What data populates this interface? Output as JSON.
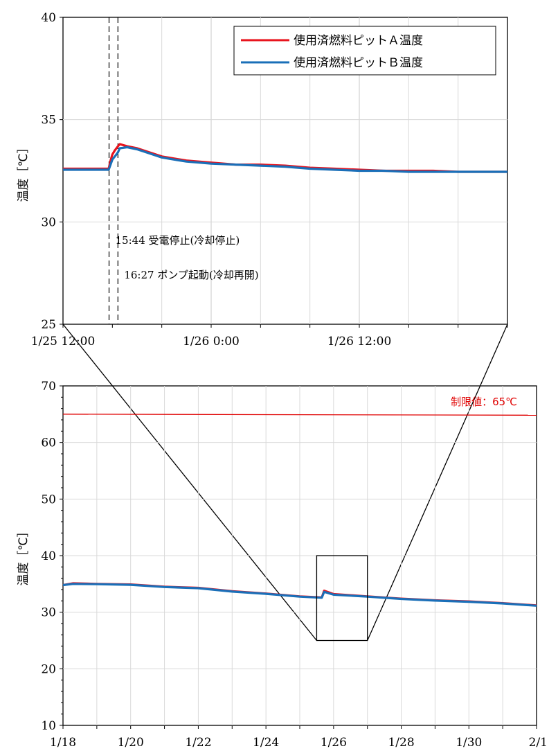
{
  "chart_data": [
    {
      "id": "top",
      "type": "line",
      "title": "",
      "xlabel": "",
      "ylabel": "温度［℃］",
      "xlim_hours": [
        12,
        48
      ],
      "x_ticks": [
        {
          "h": 12,
          "label": "1/25  12:00"
        },
        {
          "h": 24,
          "label": "1/26  0:00"
        },
        {
          "h": 36,
          "label": "1/26  12:00"
        }
      ],
      "ylim": [
        25,
        40
      ],
      "y_ticks": [
        25,
        30,
        35,
        40
      ],
      "legend_position": "top-right",
      "series": [
        {
          "name": "使用済燃料ピットＡ温度",
          "color": "#e8141e",
          "points": [
            [
              12,
              32.6
            ],
            [
              15.7,
              32.6
            ],
            [
              15.85,
              33.0
            ],
            [
              16.0,
              33.3
            ],
            [
              16.2,
              33.5
            ],
            [
              16.45,
              33.7
            ],
            [
              16.6,
              33.8
            ],
            [
              17.2,
              33.7
            ],
            [
              18,
              33.6
            ],
            [
              19,
              33.4
            ],
            [
              20,
              33.2
            ],
            [
              21,
              33.1
            ],
            [
              22,
              33.0
            ],
            [
              24,
              32.9
            ],
            [
              26,
              32.8
            ],
            [
              28,
              32.8
            ],
            [
              30,
              32.75
            ],
            [
              32,
              32.65
            ],
            [
              34,
              32.6
            ],
            [
              36,
              32.55
            ],
            [
              38,
              32.5
            ],
            [
              40,
              32.5
            ],
            [
              42,
              32.5
            ],
            [
              44,
              32.45
            ],
            [
              46,
              32.45
            ],
            [
              48,
              32.45
            ]
          ]
        },
        {
          "name": "使用済燃料ピットＢ温度",
          "color": "#1a6fb8",
          "points": [
            [
              12,
              32.55
            ],
            [
              15.7,
              32.55
            ],
            [
              15.85,
              32.8
            ],
            [
              16.0,
              33.05
            ],
            [
              16.2,
              33.2
            ],
            [
              16.45,
              33.4
            ],
            [
              16.6,
              33.6
            ],
            [
              17.2,
              33.65
            ],
            [
              18,
              33.55
            ],
            [
              19,
              33.35
            ],
            [
              20,
              33.15
            ],
            [
              21,
              33.05
            ],
            [
              22,
              32.95
            ],
            [
              24,
              32.85
            ],
            [
              26,
              32.8
            ],
            [
              28,
              32.75
            ],
            [
              30,
              32.7
            ],
            [
              32,
              32.6
            ],
            [
              34,
              32.55
            ],
            [
              36,
              32.5
            ],
            [
              38,
              32.5
            ],
            [
              40,
              32.45
            ],
            [
              42,
              32.45
            ],
            [
              44,
              32.45
            ],
            [
              46,
              32.45
            ],
            [
              48,
              32.45
            ]
          ]
        }
      ],
      "annotations": [
        {
          "h": 15.73,
          "label": "15:44 受電停止(冷却停止)",
          "y_text": 29.1
        },
        {
          "h": 16.45,
          "label": "16:27 ポンプ起動(冷却再開)",
          "y_text": 27.4
        }
      ]
    },
    {
      "id": "bottom",
      "type": "line",
      "title": "",
      "xlabel": "",
      "ylabel": "温度［℃］",
      "xlim_days": [
        0,
        14
      ],
      "x_ticks": [
        {
          "d": 0,
          "label": "1/18"
        },
        {
          "d": 2,
          "label": "1/20"
        },
        {
          "d": 4,
          "label": "1/22"
        },
        {
          "d": 6,
          "label": "1/24"
        },
        {
          "d": 8,
          "label": "1/26"
        },
        {
          "d": 10,
          "label": "1/28"
        },
        {
          "d": 12,
          "label": "1/30"
        },
        {
          "d": 14,
          "label": "2/1"
        }
      ],
      "ylim": [
        10,
        70
      ],
      "y_ticks": [
        10,
        20,
        30,
        40,
        50,
        60,
        70
      ],
      "limit": {
        "value": 65,
        "label": "制限値：65℃",
        "color": "#e00000"
      },
      "zoom_box": {
        "x0_days": 7.5,
        "x1_days": 9.0,
        "y0": 25,
        "y1": 40
      },
      "series": [
        {
          "name": "使用済燃料ピットＡ温度",
          "color": "#e8141e",
          "points": [
            [
              0,
              34.8
            ],
            [
              0.3,
              35.1
            ],
            [
              1,
              35.0
            ],
            [
              2,
              34.9
            ],
            [
              3,
              34.5
            ],
            [
              4,
              34.3
            ],
            [
              5,
              33.7
            ],
            [
              6,
              33.3
            ],
            [
              7,
              32.8
            ],
            [
              7.65,
              32.6
            ],
            [
              7.72,
              33.8
            ],
            [
              8,
              33.2
            ],
            [
              9,
              32.8
            ],
            [
              10,
              32.4
            ],
            [
              11,
              32.1
            ],
            [
              12,
              31.9
            ],
            [
              13,
              31.6
            ],
            [
              14,
              31.2
            ]
          ]
        },
        {
          "name": "使用済燃料ピットＢ温度",
          "color": "#1a6fb8",
          "points": [
            [
              0,
              34.8
            ],
            [
              0.3,
              35.0
            ],
            [
              1,
              34.95
            ],
            [
              2,
              34.85
            ],
            [
              3,
              34.45
            ],
            [
              4,
              34.25
            ],
            [
              5,
              33.65
            ],
            [
              6,
              33.25
            ],
            [
              7,
              32.75
            ],
            [
              7.65,
              32.55
            ],
            [
              7.72,
              33.6
            ],
            [
              8,
              33.1
            ],
            [
              9,
              32.75
            ],
            [
              10,
              32.35
            ],
            [
              11,
              32.05
            ],
            [
              12,
              31.85
            ],
            [
              13,
              31.55
            ],
            [
              14,
              31.15
            ]
          ]
        }
      ]
    }
  ]
}
